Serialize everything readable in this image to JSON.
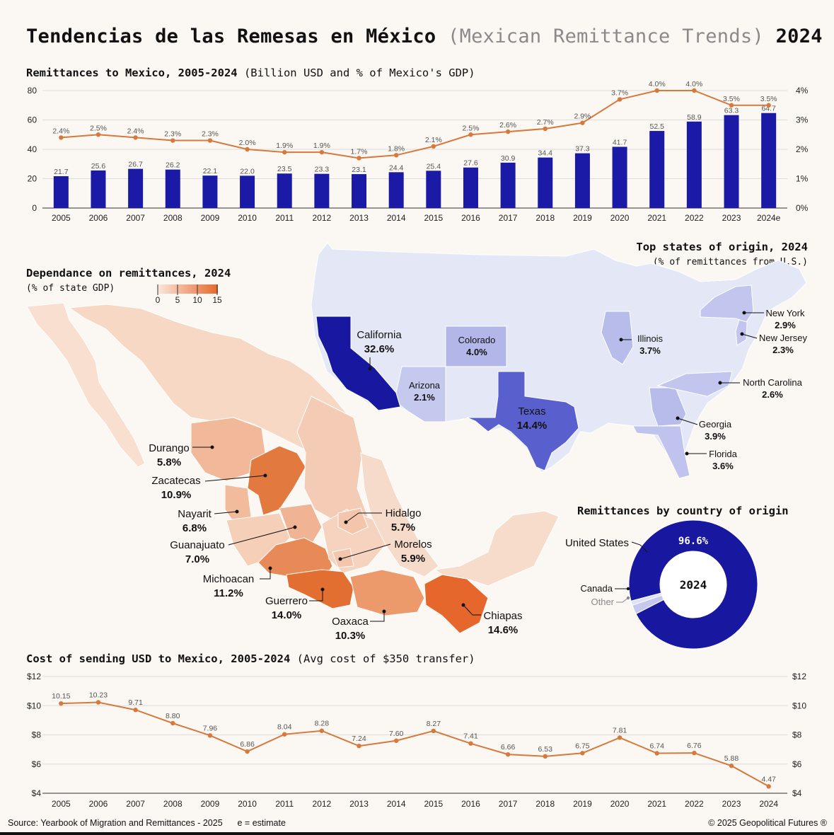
{
  "title": {
    "main": "Tendencias de las Remesas en México",
    "translation": "(Mexican Remittance Trends)",
    "year": "2024"
  },
  "remit_section": {
    "title": "Remittances to Mexico, 2005-2024",
    "subtitle": "(Billion USD and % of Mexico's GDP)"
  },
  "dep_section": {
    "title": "Dependance on remittances, 2024",
    "subtitle": "(% of state GDP)",
    "legend_ticks": [
      "0",
      "5",
      "10",
      "15"
    ]
  },
  "us_section": {
    "title": "Top states of origin, 2024",
    "subtitle": "(% of remittances from U.S.)"
  },
  "donut_section": {
    "title": "Remittances by country of origin",
    "center": "2024",
    "main_value": "96.6%",
    "labels": [
      "United States",
      "Canada",
      "Other"
    ]
  },
  "cost_section": {
    "title": "Cost of sending USD to Mexico, 2005-2024",
    "subtitle": "(Avg cost of $350 transfer)"
  },
  "footer": {
    "source": "Source: Yearbook of Migration and Remittances - 2025",
    "note": "e = estimate",
    "copyright": "© 2025 Geopolitical Futures ®"
  },
  "colors": {
    "bar": "#1a1aa6",
    "line": "#d6793d",
    "mx_low": "#f7dccb",
    "mx_high": "#e56a2c",
    "us_base": "#e4e8f6"
  },
  "chart_data": [
    {
      "type": "bar",
      "categories": [
        "2005",
        "2006",
        "2007",
        "2008",
        "2009",
        "2010",
        "2011",
        "2012",
        "2013",
        "2014",
        "2015",
        "2016",
        "2017",
        "2018",
        "2019",
        "2020",
        "2021",
        "2022",
        "2023",
        "2024e"
      ],
      "series": [
        {
          "values": [
            21.7,
            25.6,
            26.7,
            26.2,
            22.1,
            22.0,
            23.5,
            23.3,
            23.1,
            24.4,
            25.4,
            27.6,
            30.9,
            34.4,
            37.3,
            41.7,
            52.5,
            58.9,
            63.3,
            64.7
          ],
          "labels": [
            "21.7",
            "25.6",
            "26.7",
            "26.2",
            "22.1",
            "22.0",
            "23.5",
            "23.3",
            "23.1",
            "24.4",
            "25.4",
            "27.6",
            "30.9",
            "34.4",
            "37.3",
            "41.7",
            "52.5",
            "58.9",
            "63.3",
            "64.7"
          ]
        },
        {
          "values": [
            2.4,
            2.5,
            2.4,
            2.3,
            2.3,
            2.0,
            1.9,
            1.9,
            1.7,
            1.8,
            2.1,
            2.5,
            2.6,
            2.7,
            2.9,
            3.7,
            4.0,
            4.0,
            3.5,
            3.5
          ],
          "labels": [
            "2.4%",
            "2.5%",
            "2.4%",
            "2.3%",
            "2.3%",
            "2.0%",
            "1.9%",
            "1.9%",
            "1.7%",
            "1.8%",
            "2.1%",
            "2.5%",
            "2.6%",
            "2.7%",
            "2.9%",
            "3.7%",
            "4.0%",
            "4.0%",
            "3.5%",
            "3.5%"
          ]
        }
      ],
      "ylim": [
        0,
        80
      ],
      "y_ticks": [
        "0",
        "20",
        "40",
        "60",
        "80"
      ],
      "y2lim": [
        0,
        4
      ],
      "y2_ticks": [
        "0%",
        "1%",
        "2%",
        "3%",
        "4%"
      ]
    },
    {
      "type": "line",
      "x": [
        "2005",
        "2006",
        "2007",
        "2008",
        "2009",
        "2010",
        "2011",
        "2012",
        "2013",
        "2014",
        "2015",
        "2016",
        "2017",
        "2018",
        "2019",
        "2020",
        "2021",
        "2022",
        "2023",
        "2024"
      ],
      "values": [
        10.15,
        10.23,
        9.71,
        8.8,
        7.96,
        6.86,
        8.04,
        8.28,
        7.24,
        7.6,
        8.27,
        7.41,
        6.66,
        6.53,
        6.75,
        7.81,
        6.74,
        6.76,
        5.88,
        4.47
      ],
      "labels": [
        "10.15",
        "10.23",
        "9.71",
        "8.80",
        "7.96",
        "6.86",
        "8.04",
        "8.28",
        "7.24",
        "7.60",
        "8.27",
        "7.41",
        "6.66",
        "6.53",
        "6.75",
        "7.81",
        "6.74",
        "6.76",
        "5.88",
        "4.47"
      ],
      "ylim": [
        4,
        12
      ],
      "y_ticks": [
        "$4",
        "$6",
        "$8",
        "$10",
        "$12"
      ]
    },
    {
      "type": "map",
      "mexico_states": [
        {
          "name": "Durango",
          "value": "5.8%"
        },
        {
          "name": "Zacatecas",
          "value": "10.9%"
        },
        {
          "name": "Nayarit",
          "value": "6.8%"
        },
        {
          "name": "Guanajuato",
          "value": "7.0%"
        },
        {
          "name": "Michoacan",
          "value": "11.2%"
        },
        {
          "name": "Guerrero",
          "value": "14.0%"
        },
        {
          "name": "Oaxaca",
          "value": "10.3%"
        },
        {
          "name": "Chiapas",
          "value": "14.6%"
        },
        {
          "name": "Hidalgo",
          "value": "5.7%"
        },
        {
          "name": "Morelos",
          "value": "5.9%"
        }
      ],
      "us_states": [
        {
          "name": "California",
          "value": "32.6%"
        },
        {
          "name": "Texas",
          "value": "14.4%"
        },
        {
          "name": "Colorado",
          "value": "4.0%"
        },
        {
          "name": "Arizona",
          "value": "2.1%"
        },
        {
          "name": "Illinois",
          "value": "3.7%"
        },
        {
          "name": "Georgia",
          "value": "3.9%"
        },
        {
          "name": "Florida",
          "value": "3.6%"
        },
        {
          "name": "New York",
          "value": "2.9%"
        },
        {
          "name": "New Jersey",
          "value": "2.3%"
        },
        {
          "name": "North Carolina",
          "value": "2.6%"
        }
      ]
    },
    {
      "type": "pie",
      "categories": [
        "United States",
        "Canada",
        "Other"
      ],
      "values": [
        96.6,
        2.3,
        1.1
      ]
    }
  ]
}
